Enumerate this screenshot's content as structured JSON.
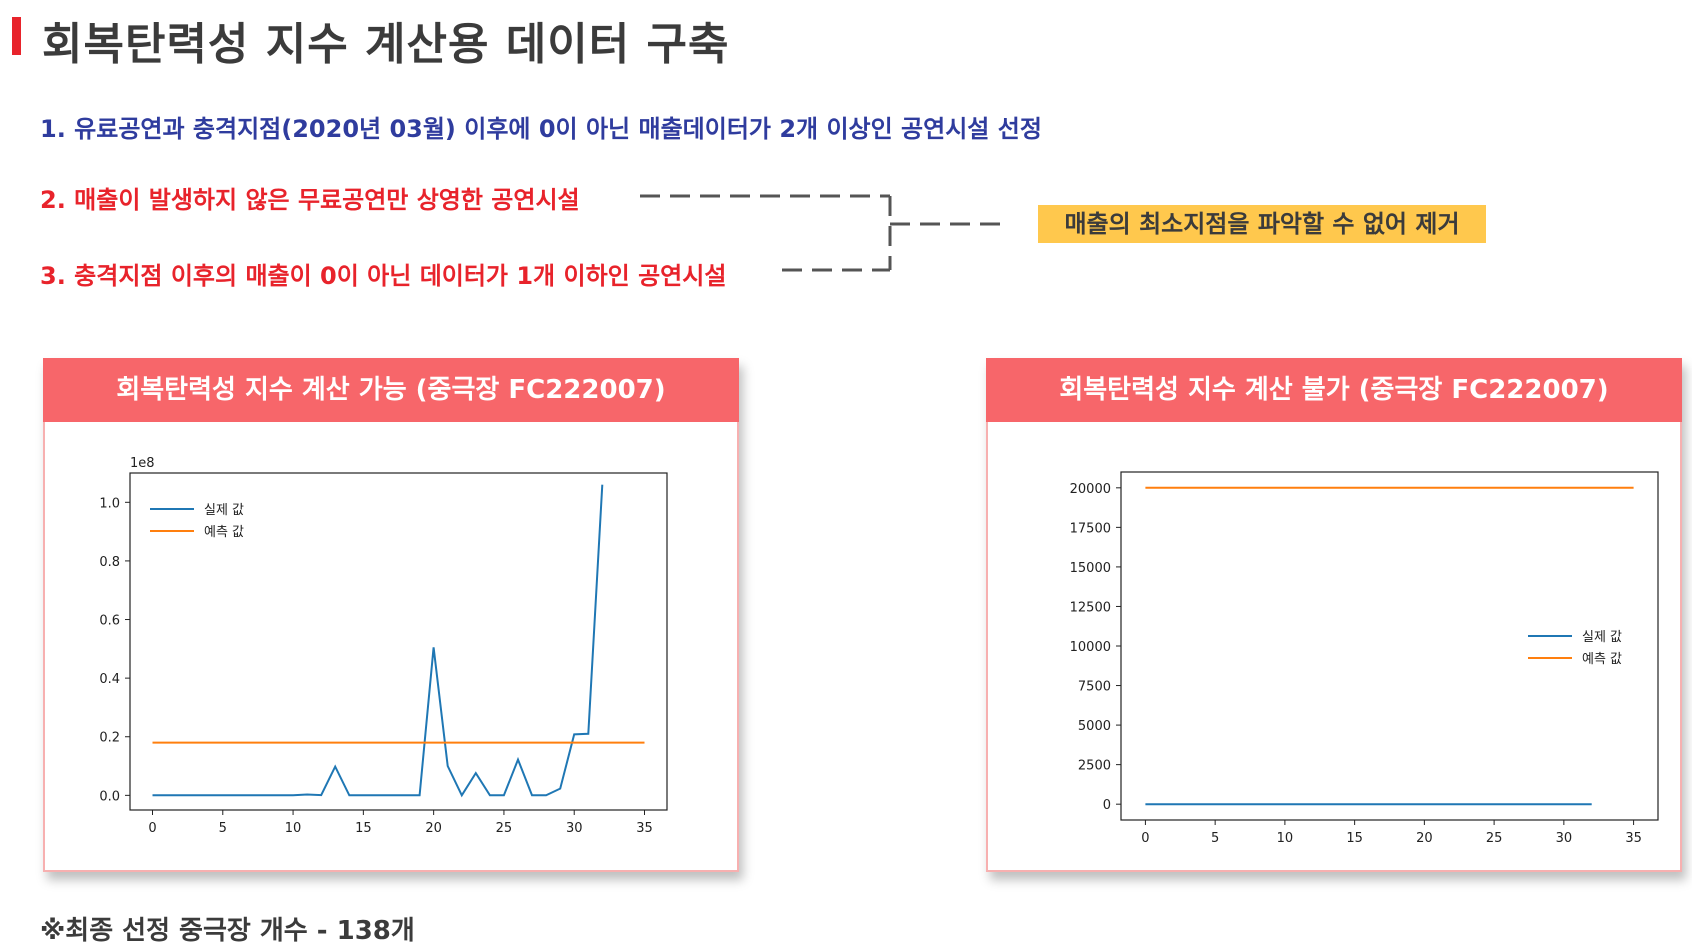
{
  "slide": {
    "title": "회복탄력성 지수 계산용 데이터 구축",
    "criteria": [
      "1. 유료공연과 충격지점(2020년 03월) 이후에 0이 아닌 매출데이터가 2개 이상인 공연시설 선정",
      "2. 매출이 발생하지 않은 무료공연만 상영한 공연시설",
      "3. 충격지점 이후의 매출이 0이 아닌 데이터가 1개 이하인 공연시설"
    ],
    "note": "매출의 최소지점을 파악할 수 없어 제거",
    "footer": "※최종 선정 중극장 개수 - 138개",
    "colors": {
      "accent_red": "#e8232b",
      "blue_text": "#2f3c9e",
      "header_pink": "#f7666a",
      "note_yellow": "#ffc84d"
    }
  },
  "cards": [
    {
      "header": "회복탄력성 지수 계산 가능 (중극장 FC222007)"
    },
    {
      "header": "회복탄력성 지수 계산 불가 (중극장 FC222007)"
    }
  ],
  "chart_data": [
    {
      "type": "line",
      "title": "",
      "offset_label": "1e8",
      "xlim": [
        -1.6,
        36.6
      ],
      "ylim": [
        -0.05,
        1.1
      ],
      "xticks": [
        0,
        5,
        10,
        15,
        20,
        25,
        30,
        35
      ],
      "yticks": [
        0.0,
        0.2,
        0.4,
        0.6,
        0.8,
        1.0
      ],
      "ytick_labels": [
        "0.0",
        "0.2",
        "0.4",
        "0.6",
        "0.8",
        "1.0"
      ],
      "legend_position": "upper-left",
      "series": [
        {
          "name": "실제 값",
          "color": "#1f77b4",
          "x": [
            0,
            1,
            2,
            3,
            4,
            5,
            6,
            7,
            8,
            9,
            10,
            11,
            12,
            13,
            14,
            15,
            16,
            17,
            18,
            19,
            20,
            21,
            22,
            23,
            24,
            25,
            26,
            27,
            28,
            29,
            30,
            31,
            32
          ],
          "y": [
            0,
            0,
            0,
            0,
            0,
            0,
            0,
            0,
            0,
            0,
            0,
            0.003,
            0.001,
            0.098,
            0,
            0,
            0,
            0,
            0,
            0,
            0.505,
            0.1,
            0,
            0.076,
            0,
            0,
            0.122,
            0,
            0,
            0.023,
            0.208,
            0.21,
            1.06
          ]
        },
        {
          "name": "예측 값",
          "color": "#ff7f0e",
          "x": [
            0,
            35
          ],
          "y": [
            0.18,
            0.18
          ]
        }
      ]
    },
    {
      "type": "line",
      "title": "",
      "offset_label": "",
      "xlim": [
        -1.75,
        36.75
      ],
      "ylim": [
        -1000,
        21000
      ],
      "xticks": [
        0,
        5,
        10,
        15,
        20,
        25,
        30,
        35
      ],
      "yticks": [
        0,
        2500,
        5000,
        7500,
        10000,
        12500,
        15000,
        17500,
        20000
      ],
      "ytick_labels": [
        "0",
        "2500",
        "5000",
        "7500",
        "10000",
        "12500",
        "15000",
        "17500",
        "20000"
      ],
      "legend_position": "center-right",
      "series": [
        {
          "name": "실제 값",
          "color": "#1f77b4",
          "x": [
            0,
            32
          ],
          "y": [
            0,
            0
          ]
        },
        {
          "name": "예측 값",
          "color": "#ff7f0e",
          "x": [
            0,
            35
          ],
          "y": [
            20000,
            20000
          ]
        }
      ]
    }
  ]
}
